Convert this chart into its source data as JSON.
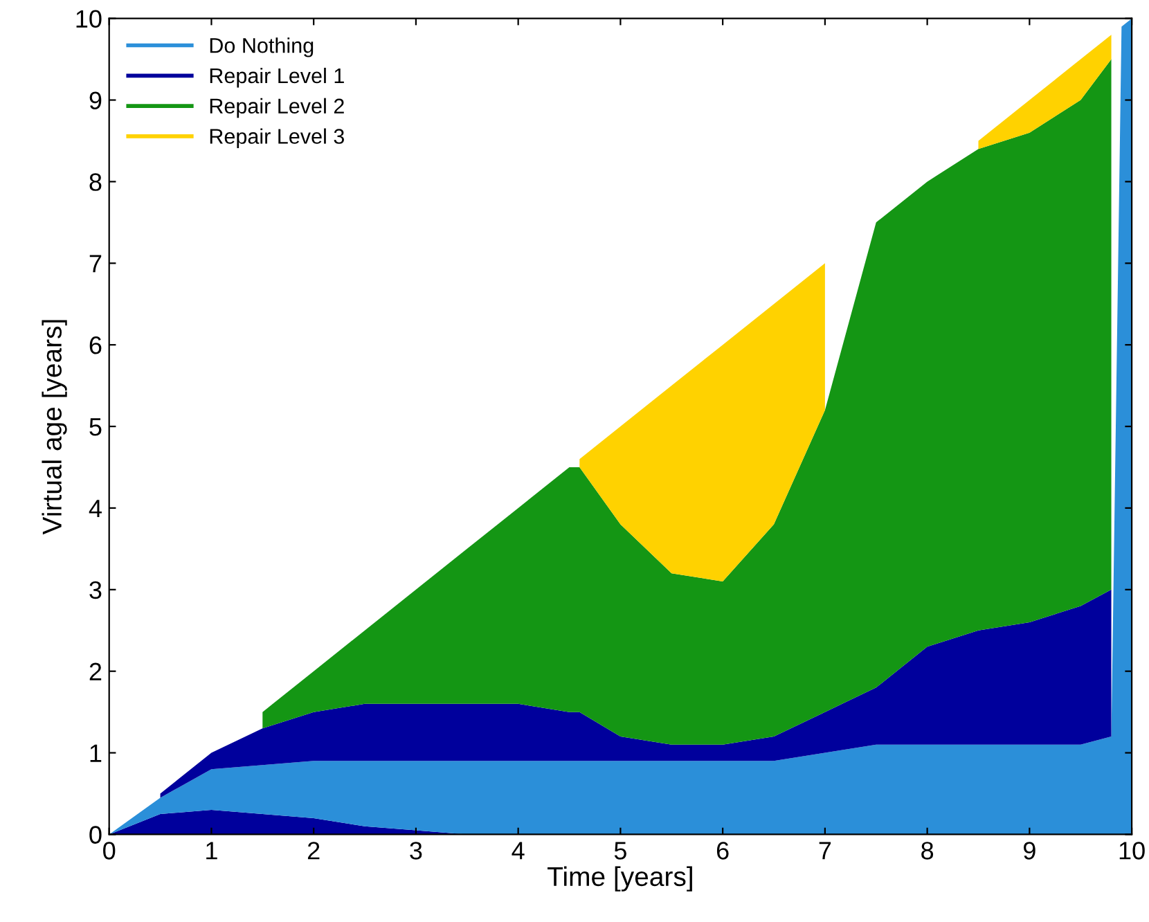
{
  "chart_data": {
    "type": "area",
    "stacked": true,
    "xlabel": "Time [years]",
    "ylabel": "Virtual age [years]",
    "x": [
      0,
      0.5,
      1,
      1.5,
      2,
      2.5,
      3,
      3.5,
      4,
      4.5,
      4.6,
      5,
      5.5,
      6,
      6.5,
      7,
      7.5,
      8,
      8.5,
      9,
      9.5,
      9.8,
      9.9,
      10
    ],
    "series": [
      {
        "color": "#00009c",
        "values": [
          0,
          0.25,
          0.3,
          0.25,
          0.2,
          0.1,
          0.05,
          0,
          0,
          0,
          0,
          0,
          0,
          0,
          0,
          0,
          0,
          0,
          0,
          0,
          0,
          0,
          0,
          0
        ]
      },
      {
        "name": "Do Nothing",
        "color": "#2b8fd9",
        "values": [
          0,
          0.2,
          0.5,
          0.6,
          0.7,
          0.8,
          0.85,
          0.9,
          0.9,
          0.9,
          0.9,
          0.9,
          0.9,
          0.9,
          0.9,
          1.0,
          1.1,
          1.1,
          1.1,
          1.1,
          1.1,
          1.2,
          9.9,
          10
        ]
      },
      {
        "name": "Repair Level 1",
        "color": "#00009c",
        "values": [
          null,
          0.05,
          0.2,
          0.45,
          0.6,
          0.7,
          0.7,
          0.7,
          0.7,
          0.6,
          0.6,
          0.3,
          0.2,
          0.2,
          0.3,
          0.5,
          0.7,
          1.2,
          1.4,
          1.5,
          1.7,
          1.8,
          null,
          null
        ]
      },
      {
        "name": "Repair Level 2",
        "color": "#149614",
        "values": [
          null,
          null,
          null,
          0.2,
          0.5,
          0.9,
          1.4,
          1.9,
          2.4,
          3.0,
          3.0,
          2.6,
          2.1,
          2.0,
          2.6,
          3.7,
          5.7,
          5.7,
          5.9,
          6.0,
          6.2,
          6.5,
          null,
          null
        ]
      },
      {
        "name": "Repair Level 3",
        "color": "#ffd200",
        "values": [
          null,
          null,
          null,
          null,
          null,
          null,
          null,
          null,
          null,
          null,
          0.1,
          1.2,
          2.3,
          2.9,
          2.7,
          1.8,
          null,
          null,
          0.1,
          0.4,
          0.5,
          0.3,
          null,
          null
        ]
      }
    ],
    "xlim": [
      0,
      10
    ],
    "ylim": [
      0,
      10
    ],
    "xticks": [
      0,
      1,
      2,
      3,
      4,
      5,
      6,
      7,
      8,
      9,
      10
    ],
    "yticks": [
      0,
      1,
      2,
      3,
      4,
      5,
      6,
      7,
      8,
      9,
      10
    ],
    "grid": false,
    "legend": "top left"
  }
}
